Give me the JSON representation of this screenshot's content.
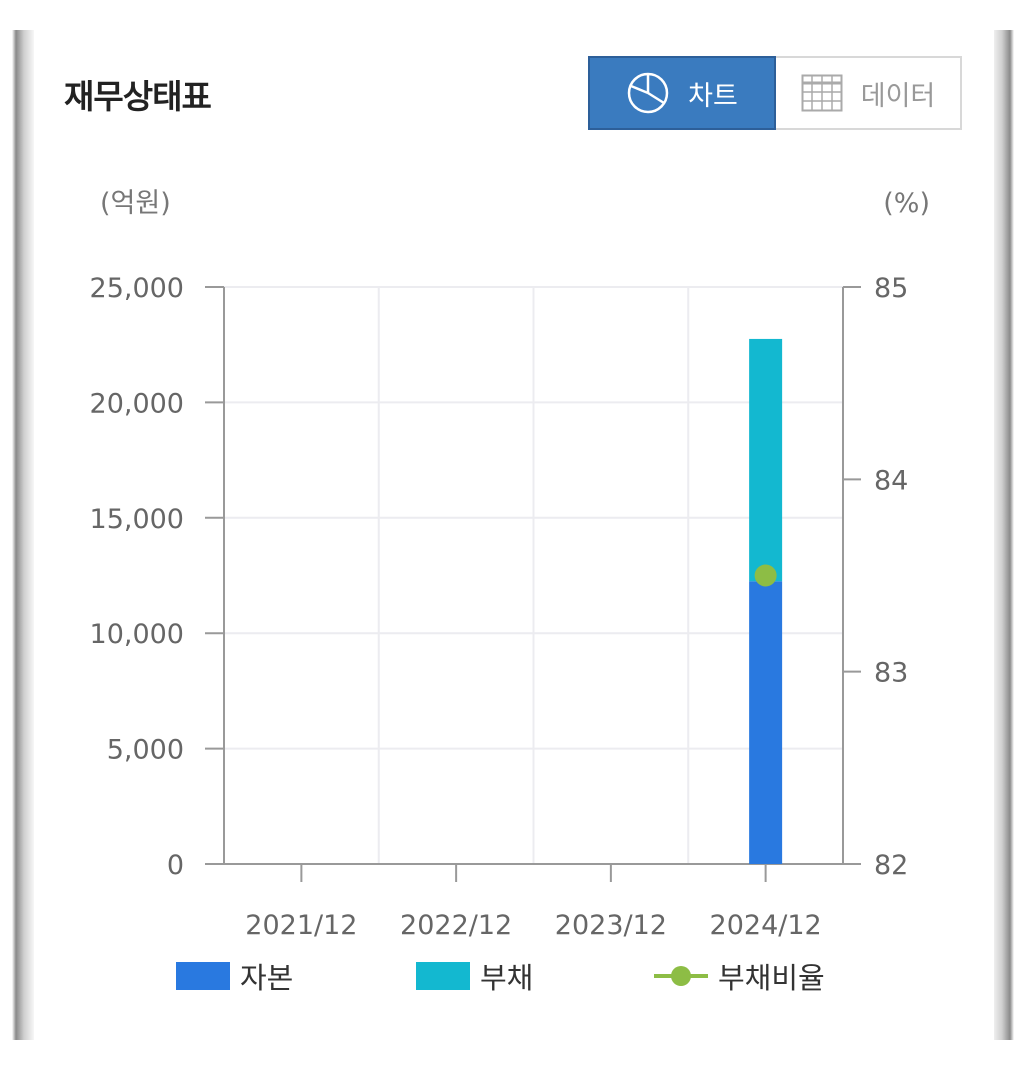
{
  "title": "재무상태표",
  "toggle": {
    "chart_label": "차트",
    "data_label": "데이터"
  },
  "units": {
    "left": "(억원)",
    "right": "(%)"
  },
  "colors": {
    "capital": "#2979e0",
    "liabilities": "#13b8d0",
    "debt_ratio": "#8dbd45",
    "active_toggle": "#3a7bbf"
  },
  "chart_data": {
    "type": "bar",
    "stacked": true,
    "categories": [
      "2021/12",
      "2022/12",
      "2023/12",
      "2024/12"
    ],
    "series": [
      {
        "name": "자본",
        "type": "bar",
        "axis": "left",
        "values": [
          null,
          null,
          null,
          12250
        ]
      },
      {
        "name": "부채",
        "type": "bar",
        "axis": "left",
        "values": [
          null,
          null,
          null,
          10500
        ]
      },
      {
        "name": "부채비율",
        "type": "line",
        "axis": "right",
        "values": [
          null,
          null,
          null,
          83.5
        ]
      }
    ],
    "y_left": {
      "ylim": [
        0,
        25000
      ],
      "ticks": [
        "0",
        "5,000",
        "10,000",
        "15,000",
        "20,000",
        "25,000"
      ]
    },
    "y_right": {
      "ylim": [
        82,
        85
      ],
      "ticks": [
        "82",
        "83",
        "84",
        "85"
      ]
    },
    "grid": true,
    "legend": "bottom"
  },
  "legend": [
    {
      "label": "자본"
    },
    {
      "label": "부채"
    },
    {
      "label": "부채비율"
    }
  ]
}
